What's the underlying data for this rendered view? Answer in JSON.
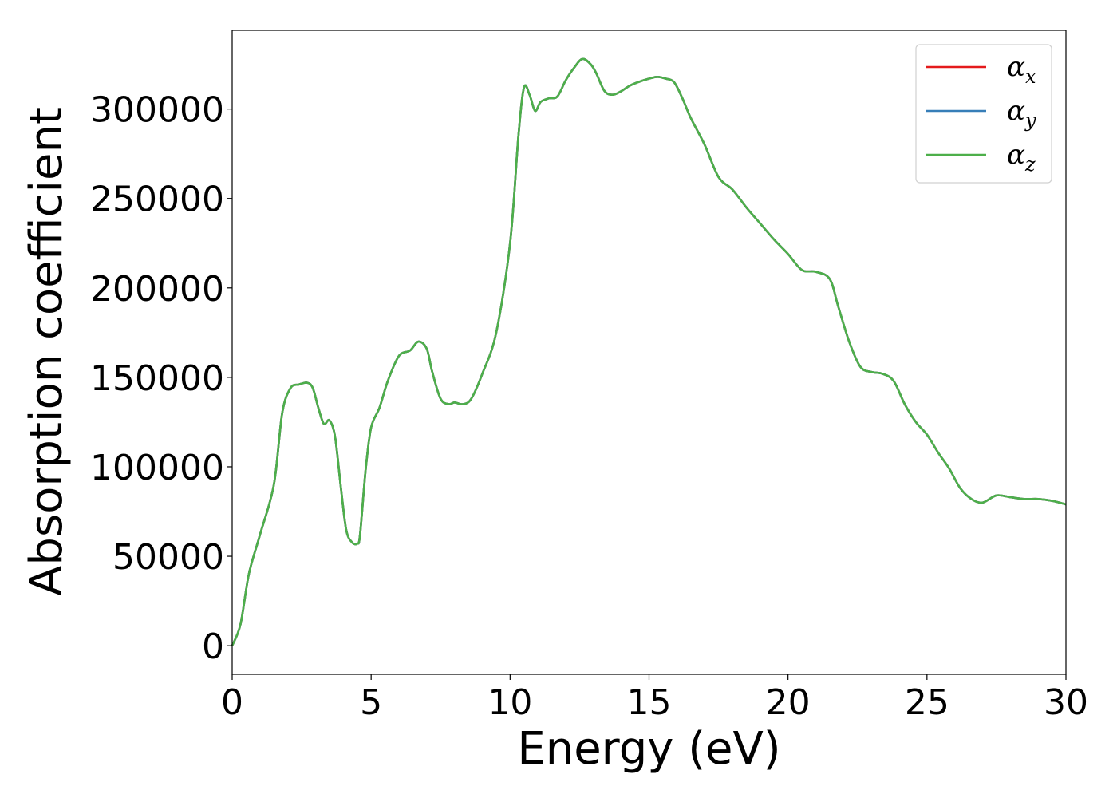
{
  "chart_data": {
    "type": "line",
    "title": "",
    "xlabel": "Energy (eV)",
    "ylabel": "Absorption coefficient",
    "xlim": [
      0,
      30
    ],
    "ylim": [
      -16000,
      344000
    ],
    "xticks": [
      0,
      5,
      10,
      15,
      20,
      25,
      30
    ],
    "yticks": [
      0,
      50000,
      100000,
      150000,
      200000,
      250000,
      300000
    ],
    "grid": false,
    "legend_position": "top-right",
    "series": [
      {
        "name": "α_x",
        "legend_symbol": "α",
        "legend_subscript": "x",
        "color": "#e41a1c",
        "x": [
          0,
          0.3,
          0.6,
          1.0,
          1.5,
          1.8,
          2.1,
          2.4,
          2.7,
          2.9,
          3.1,
          3.3,
          3.5,
          3.7,
          3.9,
          4.1,
          4.3,
          4.5,
          4.6,
          4.8,
          5.0,
          5.3,
          5.6,
          6.0,
          6.4,
          6.7,
          7.0,
          7.2,
          7.5,
          7.8,
          8.0,
          8.3,
          8.6,
          9.0,
          9.5,
          10.0,
          10.3,
          10.5,
          10.7,
          10.9,
          11.1,
          11.4,
          11.7,
          12.0,
          12.3,
          12.6,
          12.9,
          13.1,
          13.4,
          13.7,
          14.0,
          14.3,
          14.6,
          15.0,
          15.3,
          15.6,
          15.9,
          16.2,
          16.5,
          17.0,
          17.5,
          18.0,
          18.5,
          19.0,
          19.5,
          20.0,
          20.5,
          21.0,
          21.5,
          21.8,
          22.2,
          22.6,
          23.0,
          23.4,
          23.8,
          24.2,
          24.6,
          25.0,
          25.4,
          25.8,
          26.2,
          26.6,
          27.0,
          27.5,
          28.0,
          28.5,
          29.0,
          29.5,
          30.0
        ],
        "values": [
          0,
          12000,
          40000,
          62000,
          90000,
          130000,
          144000,
          146000,
          147000,
          144000,
          133000,
          124000,
          126000,
          117000,
          90000,
          65000,
          58000,
          57000,
          62000,
          98000,
          122000,
          133000,
          148000,
          162000,
          165000,
          170000,
          166000,
          153000,
          138000,
          135000,
          136000,
          135000,
          138000,
          152000,
          175000,
          225000,
          285000,
          312000,
          308000,
          299000,
          304000,
          306000,
          307000,
          316000,
          323000,
          328000,
          325000,
          320000,
          310000,
          308000,
          310000,
          313000,
          315000,
          317000,
          318000,
          317000,
          315000,
          306000,
          295000,
          280000,
          262000,
          255000,
          245000,
          236000,
          227000,
          219000,
          210000,
          209000,
          205000,
          190000,
          170000,
          156000,
          153000,
          152000,
          148000,
          135000,
          125000,
          118000,
          108000,
          99000,
          88000,
          82000,
          80000,
          84000,
          83000,
          82000,
          82000,
          81000,
          79000
        ]
      },
      {
        "name": "α_y",
        "legend_symbol": "α",
        "legend_subscript": "y",
        "color": "#377eb8",
        "x": [
          0,
          0.3,
          0.6,
          1.0,
          1.5,
          1.8,
          2.1,
          2.4,
          2.7,
          2.9,
          3.1,
          3.3,
          3.5,
          3.7,
          3.9,
          4.1,
          4.3,
          4.5,
          4.6,
          4.8,
          5.0,
          5.3,
          5.6,
          6.0,
          6.4,
          6.7,
          7.0,
          7.2,
          7.5,
          7.8,
          8.0,
          8.3,
          8.6,
          9.0,
          9.5,
          10.0,
          10.3,
          10.5,
          10.7,
          10.9,
          11.1,
          11.4,
          11.7,
          12.0,
          12.3,
          12.6,
          12.9,
          13.1,
          13.4,
          13.7,
          14.0,
          14.3,
          14.6,
          15.0,
          15.3,
          15.6,
          15.9,
          16.2,
          16.5,
          17.0,
          17.5,
          18.0,
          18.5,
          19.0,
          19.5,
          20.0,
          20.5,
          21.0,
          21.5,
          21.8,
          22.2,
          22.6,
          23.0,
          23.4,
          23.8,
          24.2,
          24.6,
          25.0,
          25.4,
          25.8,
          26.2,
          26.6,
          27.0,
          27.5,
          28.0,
          28.5,
          29.0,
          29.5,
          30.0
        ],
        "values": [
          0,
          12000,
          40000,
          62000,
          90000,
          130000,
          144000,
          146000,
          147000,
          144000,
          133000,
          124000,
          126000,
          117000,
          90000,
          65000,
          58000,
          57000,
          62000,
          98000,
          122000,
          133000,
          148000,
          162000,
          165000,
          170000,
          166000,
          153000,
          138000,
          135000,
          136000,
          135000,
          138000,
          152000,
          175000,
          225000,
          285000,
          312000,
          308000,
          299000,
          304000,
          306000,
          307000,
          316000,
          323000,
          328000,
          325000,
          320000,
          310000,
          308000,
          310000,
          313000,
          315000,
          317000,
          318000,
          317000,
          315000,
          306000,
          295000,
          280000,
          262000,
          255000,
          245000,
          236000,
          227000,
          219000,
          210000,
          209000,
          205000,
          190000,
          170000,
          156000,
          153000,
          152000,
          148000,
          135000,
          125000,
          118000,
          108000,
          99000,
          88000,
          82000,
          80000,
          84000,
          83000,
          82000,
          82000,
          81000,
          79000
        ]
      },
      {
        "name": "α_z",
        "legend_symbol": "α",
        "legend_subscript": "z",
        "color": "#4daf4a",
        "x": [
          0,
          0.3,
          0.6,
          1.0,
          1.5,
          1.8,
          2.1,
          2.4,
          2.7,
          2.9,
          3.1,
          3.3,
          3.5,
          3.7,
          3.9,
          4.1,
          4.3,
          4.5,
          4.6,
          4.8,
          5.0,
          5.3,
          5.6,
          6.0,
          6.4,
          6.7,
          7.0,
          7.2,
          7.5,
          7.8,
          8.0,
          8.3,
          8.6,
          9.0,
          9.5,
          10.0,
          10.3,
          10.5,
          10.7,
          10.9,
          11.1,
          11.4,
          11.7,
          12.0,
          12.3,
          12.6,
          12.9,
          13.1,
          13.4,
          13.7,
          14.0,
          14.3,
          14.6,
          15.0,
          15.3,
          15.6,
          15.9,
          16.2,
          16.5,
          17.0,
          17.5,
          18.0,
          18.5,
          19.0,
          19.5,
          20.0,
          20.5,
          21.0,
          21.5,
          21.8,
          22.2,
          22.6,
          23.0,
          23.4,
          23.8,
          24.2,
          24.6,
          25.0,
          25.4,
          25.8,
          26.2,
          26.6,
          27.0,
          27.5,
          28.0,
          28.5,
          29.0,
          29.5,
          30.0
        ],
        "values": [
          0,
          12000,
          40000,
          62000,
          90000,
          130000,
          144000,
          146000,
          147000,
          144000,
          133000,
          124000,
          126000,
          117000,
          90000,
          65000,
          58000,
          57000,
          62000,
          98000,
          122000,
          133000,
          148000,
          162000,
          165000,
          170000,
          166000,
          153000,
          138000,
          135000,
          136000,
          135000,
          138000,
          152000,
          175000,
          225000,
          285000,
          312000,
          308000,
          299000,
          304000,
          306000,
          307000,
          316000,
          323000,
          328000,
          325000,
          320000,
          310000,
          308000,
          310000,
          313000,
          315000,
          317000,
          318000,
          317000,
          315000,
          306000,
          295000,
          280000,
          262000,
          255000,
          245000,
          236000,
          227000,
          219000,
          210000,
          209000,
          205000,
          190000,
          170000,
          156000,
          153000,
          152000,
          148000,
          135000,
          125000,
          118000,
          108000,
          99000,
          88000,
          82000,
          80000,
          84000,
          83000,
          82000,
          82000,
          81000,
          79000
        ]
      }
    ]
  }
}
